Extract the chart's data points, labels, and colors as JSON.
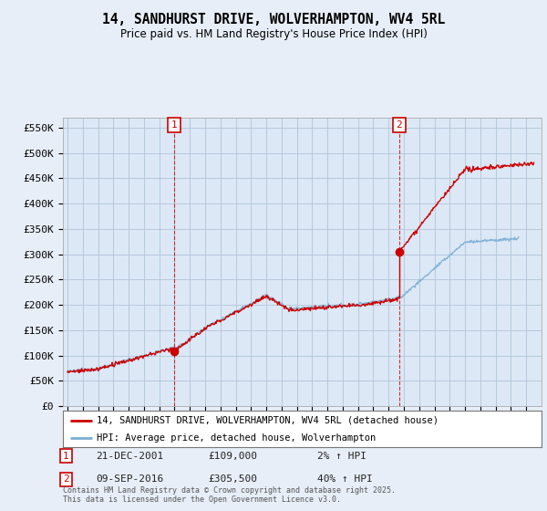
{
  "title": "14, SANDHURST DRIVE, WOLVERHAMPTON, WV4 5RL",
  "subtitle": "Price paid vs. HM Land Registry's House Price Index (HPI)",
  "ylabel_ticks": [
    "£0",
    "£50K",
    "£100K",
    "£150K",
    "£200K",
    "£250K",
    "£300K",
    "£350K",
    "£400K",
    "£450K",
    "£500K",
    "£550K"
  ],
  "ytick_values": [
    0,
    50000,
    100000,
    150000,
    200000,
    250000,
    300000,
    350000,
    400000,
    450000,
    500000,
    550000
  ],
  "ylim": [
    0,
    570000
  ],
  "purchase1_date": 2001.97,
  "purchase1_price": 109000,
  "purchase2_date": 2016.69,
  "purchase2_price": 305500,
  "legend_label_red": "14, SANDHURST DRIVE, WOLVERHAMPTON, WV4 5RL (detached house)",
  "legend_label_blue": "HPI: Average price, detached house, Wolverhampton",
  "annotation1_date": "21-DEC-2001",
  "annotation1_price": "£109,000",
  "annotation1_hpi": "2% ↑ HPI",
  "annotation2_date": "09-SEP-2016",
  "annotation2_price": "£305,500",
  "annotation2_hpi": "40% ↑ HPI",
  "footer": "Contains HM Land Registry data © Crown copyright and database right 2025.\nThis data is licensed under the Open Government Licence v3.0.",
  "red_color": "#cc0000",
  "blue_color": "#7aafd4",
  "vline_color": "#cc0000",
  "background_color": "#e8eef8",
  "plot_bg_color": "#dce8f5",
  "grid_color": "#b0c4d8"
}
